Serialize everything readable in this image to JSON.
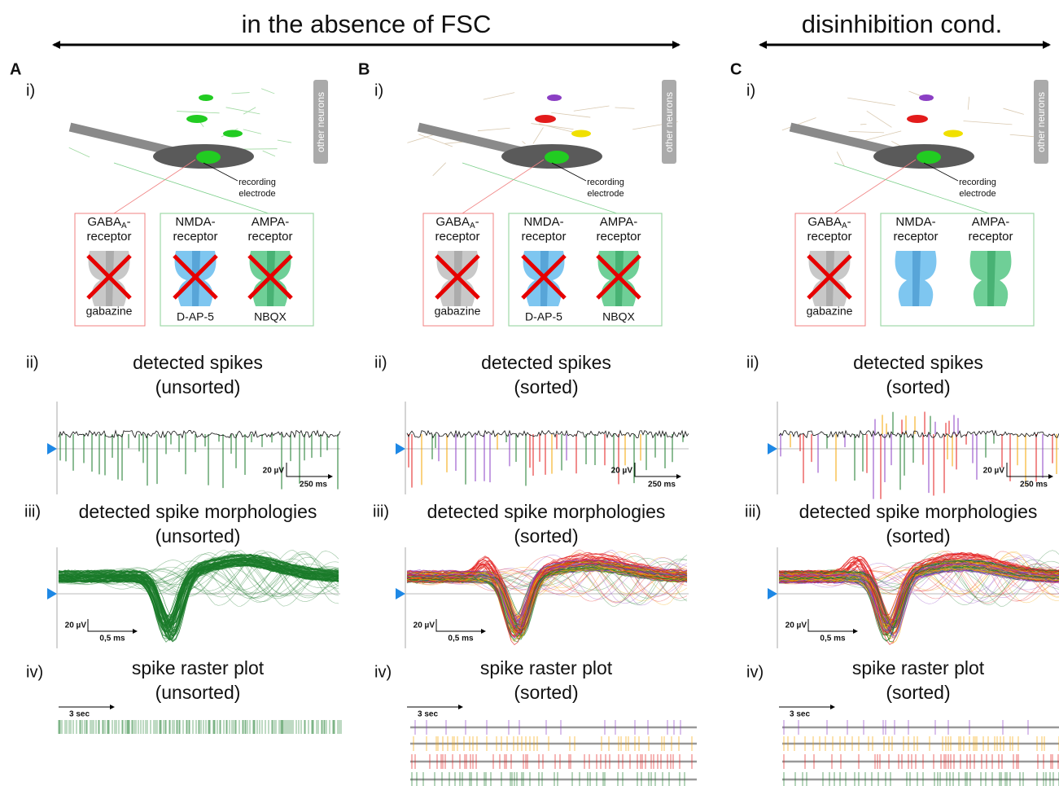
{
  "header": {
    "left_title": "in the absence of FSC",
    "right_title": "disinhibition cond."
  },
  "panels": [
    {
      "letter": "A",
      "i": {
        "label": "i)",
        "other_neurons": "other neurons",
        "electrode": [
          "recording",
          "electrode"
        ],
        "receptors": [
          {
            "name": "GABA",
            "sub": "A",
            "dash": "-",
            "line2": "receptor",
            "drug": "gabazine"
          },
          {
            "name": "NMDA-",
            "line2": "receptor",
            "drug": "D-AP-5"
          },
          {
            "name": "AMPA-",
            "line2": "receptor",
            "drug": "NBQX"
          }
        ]
      },
      "ii": {
        "label": "ii)",
        "title": "detected spikes",
        "subtitle": "(unsorted)",
        "scale_y": "20 µV",
        "scale_x": "250 ms"
      },
      "iii": {
        "label": "iii)",
        "title": "detected spike morphologies",
        "subtitle": "(unsorted)",
        "scale_y": "20 µV",
        "scale_x": "0,5 ms"
      },
      "iv": {
        "label": "iv)",
        "title": "spike raster plot",
        "subtitle": "(unsorted)",
        "scale": "3 sec"
      }
    },
    {
      "letter": "B",
      "i": {
        "label": "i)",
        "other_neurons": "other neurons",
        "electrode": [
          "recording",
          "electrode"
        ],
        "receptors": [
          {
            "name": "GABA",
            "sub": "A",
            "dash": "-",
            "line2": "receptor",
            "drug": "gabazine"
          },
          {
            "name": "NMDA-",
            "line2": "receptor",
            "drug": "D-AP-5"
          },
          {
            "name": "AMPA-",
            "line2": "receptor",
            "drug": "NBQX"
          }
        ]
      },
      "ii": {
        "label": "ii)",
        "title": "detected spikes",
        "subtitle": "(sorted)",
        "scale_y": "20 µV",
        "scale_x": "250 ms"
      },
      "iii": {
        "label": "iii)",
        "title": "detected spike morphologies",
        "subtitle": "(sorted)",
        "scale_y": "20 µV",
        "scale_x": "0,5 ms"
      },
      "iv": {
        "label": "iv)",
        "title": "spike raster plot",
        "subtitle": "(sorted)",
        "scale": "3 sec"
      }
    },
    {
      "letter": "C",
      "i": {
        "label": "i)",
        "other_neurons": "other neurons",
        "electrode": [
          "recording",
          "electrode"
        ],
        "receptors": [
          {
            "name": "GABA",
            "sub": "A",
            "dash": "-",
            "line2": "receptor",
            "drug": "gabazine"
          },
          {
            "name": "NMDA-",
            "line2": "receptor"
          },
          {
            "name": "AMPA-",
            "line2": "receptor"
          }
        ]
      },
      "ii": {
        "label": "ii)",
        "title": "detected spikes",
        "subtitle": "(sorted)",
        "scale_y": "20 µV",
        "scale_x": "250 ms"
      },
      "iii": {
        "label": "iii)",
        "title": "detected spike morphologies",
        "subtitle": "(sorted)",
        "scale_y": "20 µV",
        "scale_x": "0,5 ms"
      },
      "iv": {
        "label": "iv)",
        "title": "spike raster plot",
        "subtitle": "(sorted)",
        "scale": "3 sec"
      }
    }
  ]
}
